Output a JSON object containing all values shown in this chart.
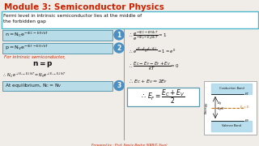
{
  "bg_color": "#f0ede8",
  "title": "Module 3: Semiconductor Physics",
  "title_color": "#cc2200",
  "subtitle": "Fermi level in intrinsic semiconductor lies at the middle of the forbidden gap",
  "subtitle_box_color": "#4db8cc",
  "box1_text": "n = Nₙe⁻⁻⁻⁻⁻⁻⁻⁻⁻⁻",
  "box1_color": "#b8dde8",
  "box2_color": "#b8dde8",
  "box3_color": "#b8dde8",
  "circle_color": "#4a90c4",
  "intrinsic_color": "#cc2200",
  "footer": "Prepared by : Prof. Sanjiv Bache (KBRIT, Sion)",
  "footer_color": "#cc2200",
  "white": "#ffffff",
  "black": "#111111",
  "gray_line": "#888888"
}
